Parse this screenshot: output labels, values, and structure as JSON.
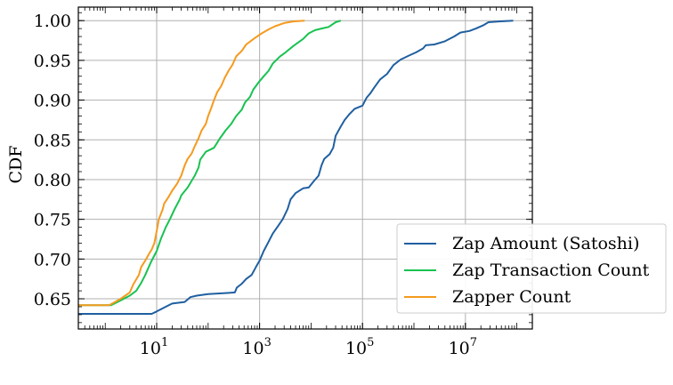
{
  "chart_data": {
    "type": "line",
    "title": "",
    "xlabel": "",
    "ylabel": "CDF",
    "xscale": "log",
    "xlim": [
      0.3,
      200000000
    ],
    "ylim": [
      0.612,
      1.017
    ],
    "grid": true,
    "legend_position": "lower-right",
    "x_ticks": [
      {
        "value": 10,
        "base": "10",
        "exp": "1"
      },
      {
        "value": 1000,
        "base": "10",
        "exp": "3"
      },
      {
        "value": 100000,
        "base": "10",
        "exp": "5"
      },
      {
        "value": 10000000,
        "base": "10",
        "exp": "7"
      }
    ],
    "y_ticks": [
      0.65,
      0.7,
      0.75,
      0.8,
      0.85,
      0.9,
      0.95,
      1.0
    ],
    "series": [
      {
        "name": "Zap Amount (Satoshi)",
        "color": "#1f5fa0",
        "points": [
          [
            0.3,
            0.631
          ],
          [
            8,
            0.631
          ],
          [
            10,
            0.634
          ],
          [
            15,
            0.64
          ],
          [
            20,
            0.644
          ],
          [
            35,
            0.646
          ],
          [
            45,
            0.652
          ],
          [
            60,
            0.654
          ],
          [
            100,
            0.656
          ],
          [
            200,
            0.657
          ],
          [
            330,
            0.658
          ],
          [
            360,
            0.664
          ],
          [
            450,
            0.669
          ],
          [
            550,
            0.675
          ],
          [
            700,
            0.68
          ],
          [
            850,
            0.69
          ],
          [
            1000,
            0.698
          ],
          [
            1200,
            0.71
          ],
          [
            1500,
            0.722
          ],
          [
            1800,
            0.732
          ],
          [
            2200,
            0.74
          ],
          [
            2800,
            0.75
          ],
          [
            3500,
            0.763
          ],
          [
            4000,
            0.775
          ],
          [
            5000,
            0.783
          ],
          [
            7000,
            0.789
          ],
          [
            9000,
            0.79
          ],
          [
            11000,
            0.797
          ],
          [
            14000,
            0.805
          ],
          [
            16000,
            0.818
          ],
          [
            18000,
            0.826
          ],
          [
            23000,
            0.832
          ],
          [
            27000,
            0.84
          ],
          [
            30000,
            0.855
          ],
          [
            38000,
            0.867
          ],
          [
            45000,
            0.875
          ],
          [
            55000,
            0.882
          ],
          [
            70000,
            0.889
          ],
          [
            100000,
            0.893
          ],
          [
            120000,
            0.903
          ],
          [
            140000,
            0.908
          ],
          [
            170000,
            0.916
          ],
          [
            220000,
            0.926
          ],
          [
            300000,
            0.933
          ],
          [
            400000,
            0.944
          ],
          [
            550000,
            0.951
          ],
          [
            800000,
            0.956
          ],
          [
            1100000,
            0.96
          ],
          [
            1500000,
            0.965
          ],
          [
            1700000,
            0.969
          ],
          [
            2500000,
            0.97
          ],
          [
            4000000,
            0.974
          ],
          [
            6000000,
            0.98
          ],
          [
            8000000,
            0.985
          ],
          [
            12000000,
            0.987
          ],
          [
            16000000,
            0.99
          ],
          [
            22000000,
            0.994
          ],
          [
            28000000,
            0.998
          ],
          [
            45000000,
            0.999
          ],
          [
            85000000,
            1.0
          ]
        ]
      },
      {
        "name": "Zap Transaction Count",
        "color": "#19c251",
        "points": [
          [
            0.3,
            0.642
          ],
          [
            1.3,
            0.642
          ],
          [
            2,
            0.648
          ],
          [
            3,
            0.654
          ],
          [
            4,
            0.66
          ],
          [
            5,
            0.67
          ],
          [
            6,
            0.68
          ],
          [
            7,
            0.69
          ],
          [
            8,
            0.698
          ],
          [
            10,
            0.71
          ],
          [
            12,
            0.725
          ],
          [
            15,
            0.74
          ],
          [
            18,
            0.75
          ],
          [
            22,
            0.762
          ],
          [
            28,
            0.775
          ],
          [
            30,
            0.78
          ],
          [
            40,
            0.79
          ],
          [
            55,
            0.805
          ],
          [
            65,
            0.815
          ],
          [
            70,
            0.825
          ],
          [
            90,
            0.835
          ],
          [
            130,
            0.84
          ],
          [
            170,
            0.852
          ],
          [
            220,
            0.862
          ],
          [
            280,
            0.87
          ],
          [
            350,
            0.88
          ],
          [
            450,
            0.888
          ],
          [
            520,
            0.897
          ],
          [
            650,
            0.904
          ],
          [
            750,
            0.913
          ],
          [
            950,
            0.922
          ],
          [
            1200,
            0.93
          ],
          [
            1500,
            0.937
          ],
          [
            1800,
            0.946
          ],
          [
            2500,
            0.955
          ],
          [
            3200,
            0.96
          ],
          [
            4500,
            0.968
          ],
          [
            5500,
            0.972
          ],
          [
            7000,
            0.977
          ],
          [
            9000,
            0.984
          ],
          [
            12000,
            0.988
          ],
          [
            16000,
            0.99
          ],
          [
            22000,
            0.992
          ],
          [
            30000,
            0.998
          ],
          [
            38000,
            1.0
          ]
        ]
      },
      {
        "name": "Zapper Count",
        "color": "#f59a1e",
        "points": [
          [
            0.3,
            0.642
          ],
          [
            1.2,
            0.642
          ],
          [
            2,
            0.65
          ],
          [
            3,
            0.658
          ],
          [
            3.5,
            0.668
          ],
          [
            4.5,
            0.68
          ],
          [
            5,
            0.69
          ],
          [
            6,
            0.698
          ],
          [
            7,
            0.706
          ],
          [
            8,
            0.712
          ],
          [
            9,
            0.72
          ],
          [
            10,
            0.735
          ],
          [
            11,
            0.75
          ],
          [
            13,
            0.762
          ],
          [
            14,
            0.77
          ],
          [
            17,
            0.778
          ],
          [
            20,
            0.786
          ],
          [
            25,
            0.795
          ],
          [
            30,
            0.805
          ],
          [
            35,
            0.818
          ],
          [
            40,
            0.826
          ],
          [
            48,
            0.833
          ],
          [
            55,
            0.842
          ],
          [
            65,
            0.852
          ],
          [
            75,
            0.862
          ],
          [
            90,
            0.87
          ],
          [
            100,
            0.88
          ],
          [
            115,
            0.89
          ],
          [
            130,
            0.9
          ],
          [
            150,
            0.91
          ],
          [
            180,
            0.918
          ],
          [
            210,
            0.928
          ],
          [
            250,
            0.937
          ],
          [
            300,
            0.945
          ],
          [
            350,
            0.955
          ],
          [
            450,
            0.962
          ],
          [
            550,
            0.97
          ],
          [
            800,
            0.978
          ],
          [
            1100,
            0.984
          ],
          [
            1500,
            0.989
          ],
          [
            2000,
            0.993
          ],
          [
            3000,
            0.997
          ],
          [
            4500,
            0.999
          ],
          [
            7500,
            1.0
          ]
        ]
      }
    ]
  }
}
